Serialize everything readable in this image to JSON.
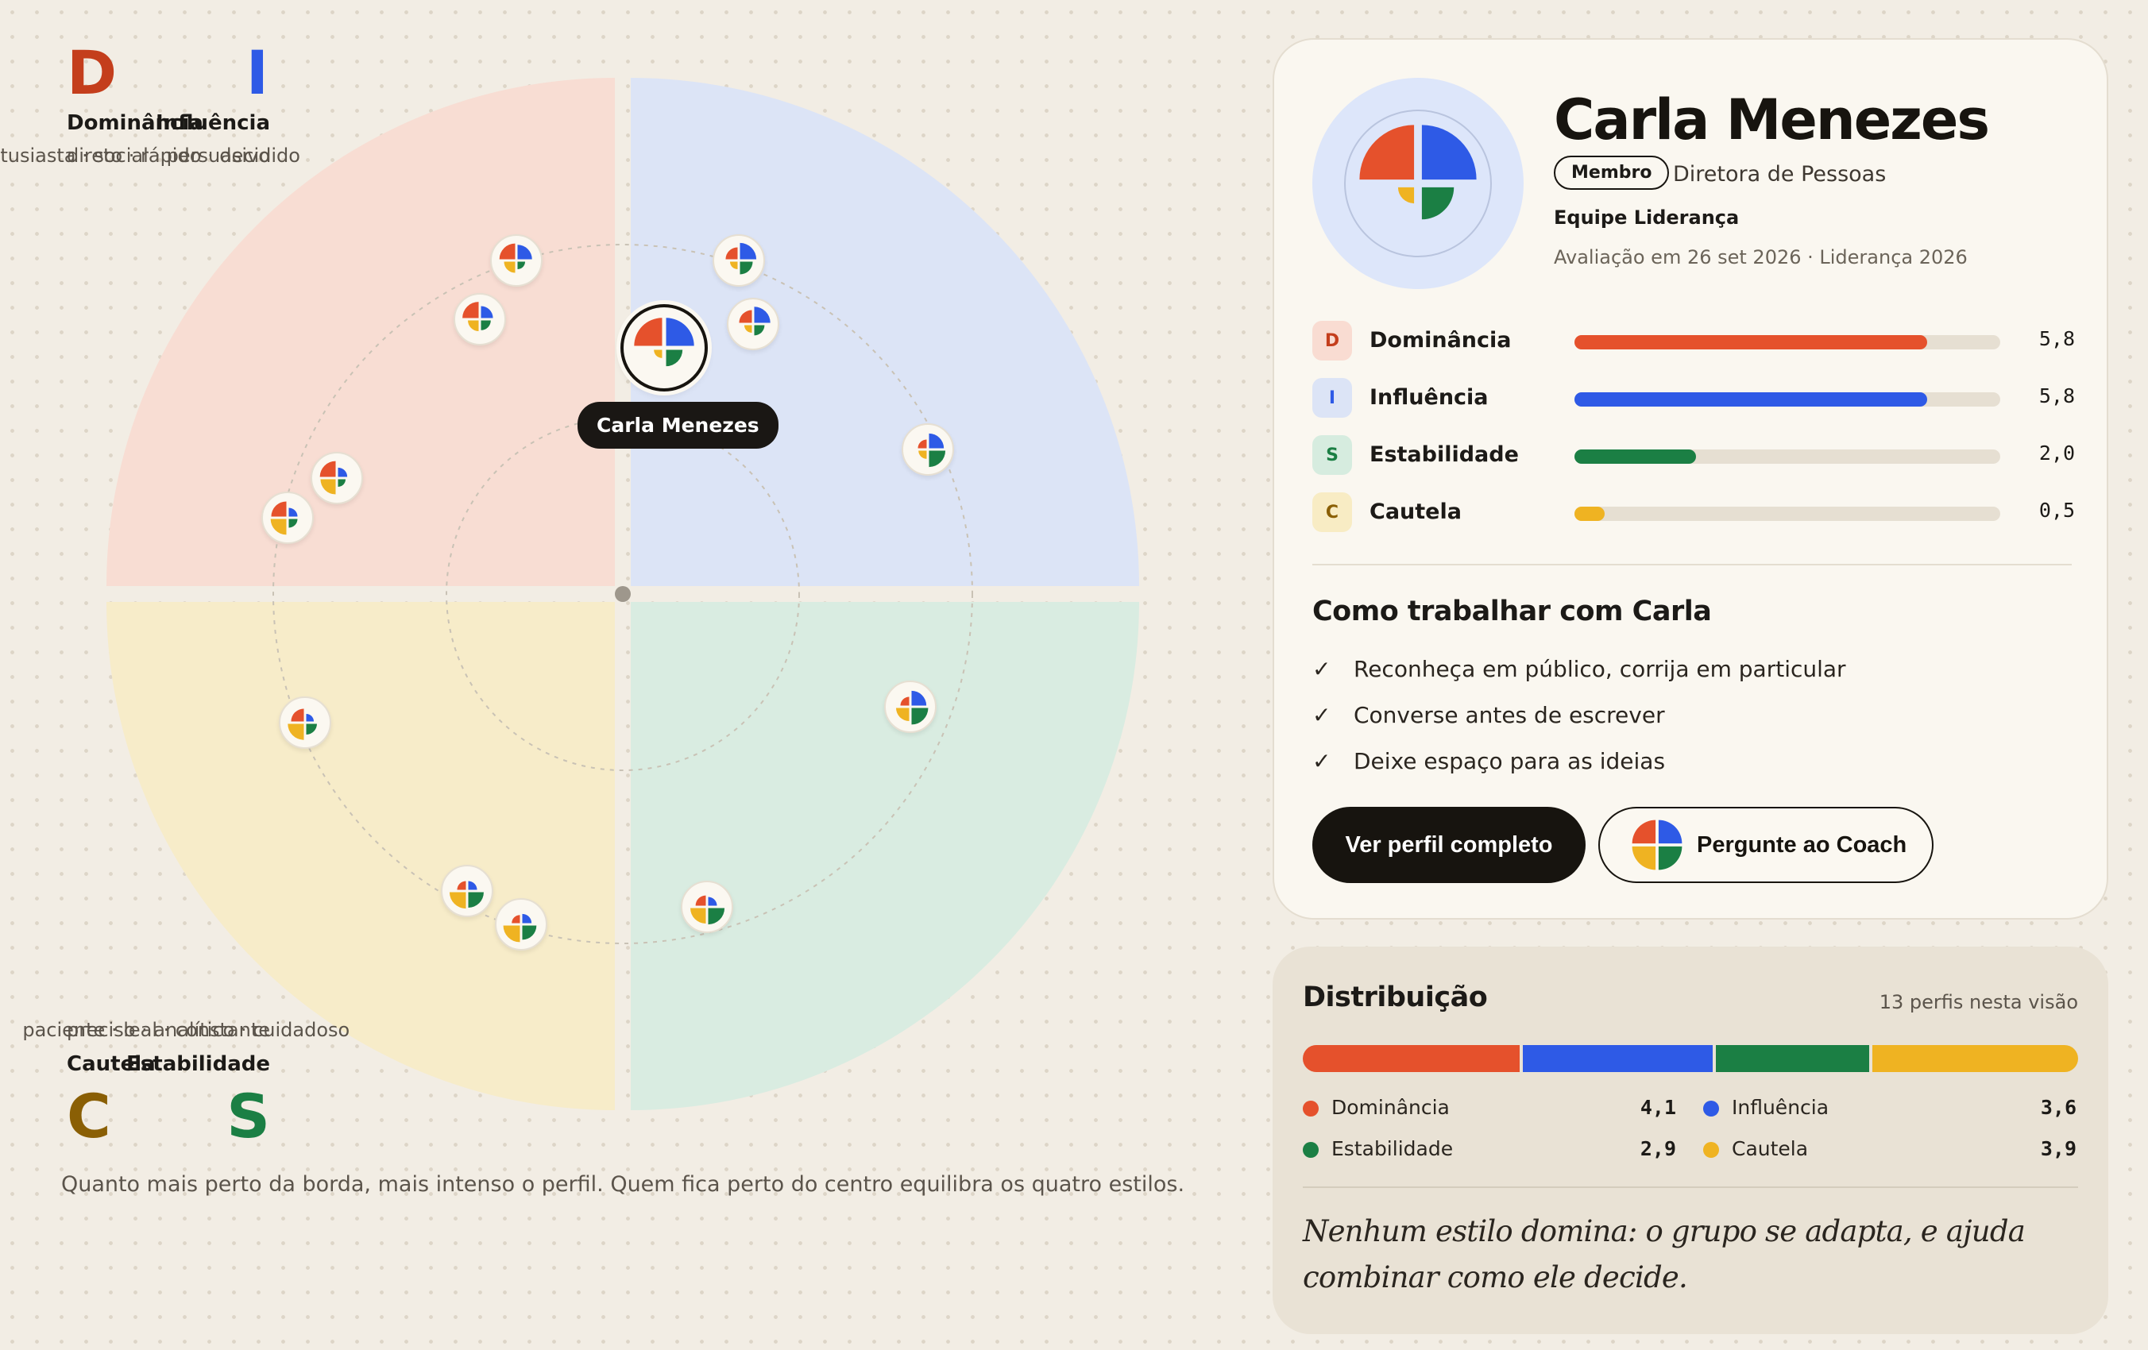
{
  "colors": {
    "dominance": "#e5512c",
    "influence": "#2e5ae6",
    "steadiness": "#1b7f44",
    "conscientiousness": "#efb322",
    "quad_d": "#f8ddd3",
    "quad_i": "#dce4f6",
    "quad_s": "#d9ece1",
    "quad_c": "#f7ecc9"
  },
  "wheel": {
    "corners": {
      "d": {
        "letter": "D",
        "title": "Dominância",
        "traits": "direto · rápido · decidido"
      },
      "i": {
        "letter": "I",
        "title": "Influência",
        "traits": "entusiasta · social · persuasivo"
      },
      "c": {
        "letter": "C",
        "title": "Cautela",
        "traits": "preciso · analítico · cuidadoso"
      },
      "s": {
        "letter": "S",
        "title": "Estabilidade",
        "traits": "paciente · leal · constante"
      }
    },
    "tooltip": "Carla Menezes",
    "caption": "Quanto mais perto da borda, mais intenso o perfil. Quem fica perto do centro equilibra os quatro estilos.",
    "profiles": [
      {
        "id": "p1",
        "scores": [
          5.2,
          4.4,
          1.2,
          2.6
        ]
      },
      {
        "id": "p2",
        "scores": [
          5.5,
          3.0,
          2.0,
          2.4
        ]
      },
      {
        "id": "p3",
        "scores": [
          3.0,
          5.6,
          3.4,
          1.2
        ]
      },
      {
        "id": "p4",
        "scores": [
          3.4,
          5.4,
          2.2,
          1.2
        ]
      },
      {
        "id": "p5",
        "scores": [
          1.6,
          4.6,
          5.6,
          1.4
        ]
      },
      {
        "id": "p6",
        "scores": [
          5.2,
          1.8,
          1.2,
          4.8
        ]
      },
      {
        "id": "p7",
        "scores": [
          4.8,
          1.6,
          1.6,
          5.2
        ]
      },
      {
        "id": "p8",
        "scores": [
          3.4,
          1.2,
          2.4,
          5.4
        ]
      },
      {
        "id": "p9",
        "scores": [
          1.6,
          4.6,
          5.8,
          3.6
        ]
      },
      {
        "id": "p10",
        "scores": [
          1.6,
          1.6,
          5.0,
          5.6
        ]
      },
      {
        "id": "p11",
        "scores": [
          1.4,
          1.8,
          4.2,
          5.8
        ]
      },
      {
        "id": "p12",
        "scores": [
          2.2,
          1.6,
          5.6,
          5.0
        ]
      }
    ],
    "selected_scores": [
      5.8,
      5.8,
      2.0,
      0.5
    ]
  },
  "profile": {
    "name": "Carla Menezes",
    "badge": "Membro",
    "role": "Diretora de Pessoas",
    "team": "Equipe Liderança",
    "assessed": "Avaliação em 26 set 2026 · Liderança 2026",
    "max_score": 7,
    "scores": [
      {
        "key": "dominance",
        "letter": "D",
        "label": "Dominância",
        "value": 5.8,
        "display": "5,8"
      },
      {
        "key": "influence",
        "letter": "I",
        "label": "Influência",
        "value": 5.8,
        "display": "5,8"
      },
      {
        "key": "steadiness",
        "letter": "S",
        "label": "Estabilidade",
        "value": 2.0,
        "display": "2,0"
      },
      {
        "key": "conscientiousness",
        "letter": "C",
        "label": "Cautela",
        "value": 0.5,
        "display": "0,5"
      }
    ],
    "tips_title": "Como trabalhar com Carla",
    "tips": [
      "Reconheça em público, corrija em particular",
      "Converse antes de escrever",
      "Deixe espaço para as ideias"
    ],
    "check_icon": "check-icon",
    "primary_button": "Ver perfil completo",
    "secondary_button": "Pergunte ao Coach"
  },
  "distribution": {
    "title": "Distribuição",
    "count": "13 perfis nesta visão",
    "items": [
      {
        "key": "dominance",
        "label": "Dominância",
        "value": 4.1,
        "display": "4,1"
      },
      {
        "key": "influence",
        "label": "Influência",
        "value": 3.6,
        "display": "3,6"
      },
      {
        "key": "steadiness",
        "label": "Estabilidade",
        "value": 2.9,
        "display": "2,9"
      },
      {
        "key": "conscientiousness",
        "label": "Cautela",
        "value": 3.9,
        "display": "3,9"
      }
    ],
    "quote": "Nenhum estilo domina: o grupo se adapta, e ajuda combinar como ele decide."
  }
}
